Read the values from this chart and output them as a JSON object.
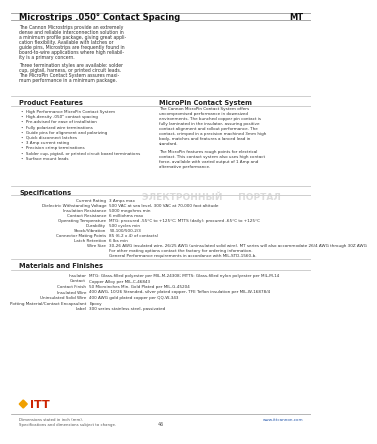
{
  "title_left": "Microstrips .050° Contact Spacing",
  "title_right": "MT",
  "bg_color": "#ffffff",
  "intro_text_col1": "The Cannon Microstrips provide an extremely\ndense and reliable interconnection solution in\na minimum profile package, giving great appli-\ncation flexibility. Available with latches or\nguide pins, Microstrips are frequently found in\nboard-to-wire applications where high reliabil-\nity is a primary concern.\n\nThree termination styles are available: solder\ncup, pigtail, harness, or printed circuit leads.\nThe MicroPin Contact System assures maxi-\nmum performance in a minimum package.",
  "product_features_title": "Product Features",
  "product_features": [
    "High Performance MicroPin Contact System",
    "High-density .050\" contact spacing",
    "Pre-advised for ease of installation",
    "Fully polarized wire terminations",
    "Guide pins for alignment and polarizing",
    "Quick disconnect latches",
    "3 Amp current rating",
    "Precision crimp terminations",
    "Solder cup, pigtail, or printed circuit board terminations",
    "Surface mount leads"
  ],
  "micropin_title": "MicroPin Contact System",
  "micropin_text": "The Cannon MicroPin Contact System offers\nuncompromised performance in downsized\nenvironments. The bunched copper pin contact is\nfully laminated in the insulator, assuring positive\ncontact alignment and rollout performance. The\ncontact, crimped in a precision machined 3mm high\nbody, matches and features a lanced lead in\nstandard.\n\nThe MicroPin features rough points for electrical\ncontact. This contact system also uses high contact\nforce, available with varied output of 1 Amp and\nalternative performance.",
  "specs_title": "Specifications",
  "specs": [
    [
      "Current Rating",
      "3 Amps max"
    ],
    [
      "Dielectric Withstanding Voltage",
      "500 VAC at sea level, 300 VAC at 70,000 foot altitude"
    ],
    [
      "Insulation Resistance",
      "5000 megohms min"
    ],
    [
      "Contact Resistance",
      "6 milliohms max"
    ],
    [
      "Operating Temperature",
      "MTG: procured -55°C to +125°C; MTTS (daily): procured -65°C to +125°C"
    ],
    [
      "Durability",
      "500 cycles min"
    ],
    [
      "Shock/Vibration",
      "50-100/500-2/3"
    ],
    [
      "Connector Mating Points",
      "85 (6.2 x 4) of contacts)"
    ],
    [
      "Latch Retention",
      "6 lbs min"
    ],
    [
      "Wire Size",
      "30-26 AWG insulated wire, 26/25 AWG (uninsulated solid wire). MT series will also accommodate 26/4 AWG through 30Z AWG\nFor other mating options contact the factory for ordering information.\nGeneral Performance requirements in accordance with MIL-STD-1560-b."
    ]
  ],
  "materials_title": "Materials and Finishes",
  "materials": [
    [
      "Insulator",
      "MTG: Glass-filled polyester per MIL-M-24308; MTTS: Glass-filled nylon polyester per MIL-M-14"
    ],
    [
      "Contact",
      "Copper Alloy per MIL-C-46843"
    ],
    [
      "Contact Finish",
      "50 Microinches Min. Gold Plated per MIL-G-45204"
    ],
    [
      "Insulated Wire",
      "400 AWG, 10/26 Stranded, silver plated copper, TFE Teflon insulation per MIL-W-16878/4"
    ],
    [
      "Uninsulated Solid Wire",
      "400 AWG gold plated copper per QQ-W-343"
    ],
    [
      "Potting Material/Contact Encapsulant",
      "Epoxy"
    ],
    [
      "Label",
      "300 series stainless steel, passivated"
    ]
  ],
  "footer_left": "Dimensions stated in inch (mm).\nSpecifications and dimensions subject to change.",
  "footer_center": "www.ittcannon.com",
  "page_num": "46",
  "watermark": "ЭЛЕКТРОННЫЙ     ПОРТАЛ"
}
